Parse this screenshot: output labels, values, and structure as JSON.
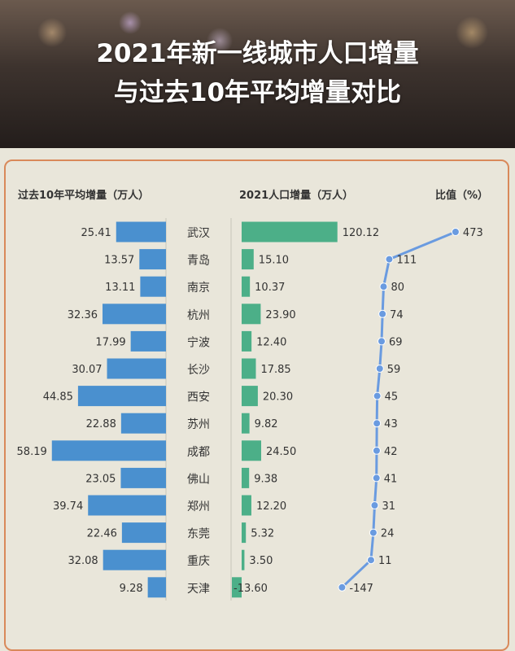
{
  "title_line1": "2021年新一线城市人口增量",
  "title_line2": "与过去10年平均增量对比",
  "chart_data": {
    "type": "bar",
    "headers": {
      "left": "过去10年平均增量（万人）",
      "middle": "2021人口增量（万人）",
      "right": "比值（%）"
    },
    "categories": [
      "武汉",
      "青岛",
      "南京",
      "杭州",
      "宁波",
      "长沙",
      "西安",
      "苏州",
      "成都",
      "佛山",
      "郑州",
      "东莞",
      "重庆",
      "天津"
    ],
    "series": [
      {
        "name": "过去10年平均增量（万人）",
        "type": "bar",
        "color": "#4a90cf",
        "values": [
          25.41,
          13.57,
          13.11,
          32.36,
          17.99,
          30.07,
          44.85,
          22.88,
          58.19,
          23.05,
          39.74,
          22.46,
          32.08,
          9.28
        ],
        "labels": [
          "25.41",
          "13.57",
          "13.11",
          "32.36",
          "17.99",
          "30.07",
          "44.85",
          "22.88",
          "58.19",
          "23.05",
          "39.74",
          "22.46",
          "32.08",
          "9.28"
        ]
      },
      {
        "name": "2021人口增量（万人）",
        "type": "bar",
        "color": "#4caf88",
        "values": [
          120.12,
          15.1,
          10.37,
          23.9,
          12.4,
          17.85,
          20.3,
          9.82,
          24.5,
          9.38,
          12.2,
          5.32,
          3.5,
          -13.6
        ],
        "labels": [
          "120.12",
          "15.10",
          "10.37",
          "23.90",
          "12.40",
          "17.85",
          "20.30",
          "9.82",
          "24.50",
          "9.38",
          "12.20",
          "5.32",
          "3.50",
          "-13.60"
        ]
      },
      {
        "name": "比值（%）",
        "type": "line",
        "color": "#6a9be0",
        "values": [
          473,
          111,
          80,
          74,
          69,
          59,
          45,
          43,
          42,
          41,
          31,
          24,
          11,
          -147
        ]
      }
    ]
  }
}
